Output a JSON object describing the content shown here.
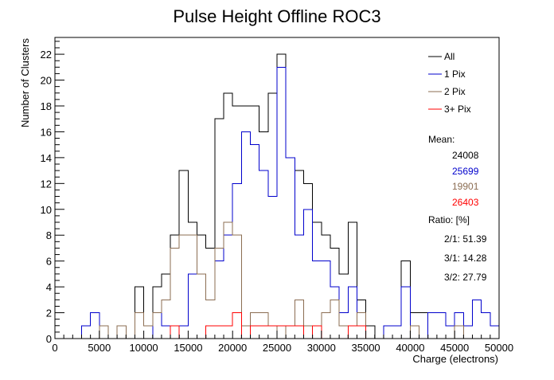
{
  "chart_data": {
    "type": "histogram",
    "title": "Pulse Height Offline ROC3",
    "xlabel": "Charge (electrons)",
    "ylabel": "Number of Clusters",
    "xlim": [
      0,
      50000
    ],
    "ylim": [
      0,
      23.3
    ],
    "bin_width": 1000,
    "x_ticks": [
      0,
      5000,
      10000,
      15000,
      20000,
      25000,
      30000,
      35000,
      40000,
      45000,
      50000
    ],
    "x_tick_labels": [
      "0",
      "5000",
      "10000",
      "15000",
      "20000",
      "25000",
      "30000",
      "35000",
      "40000",
      "45000",
      "50000"
    ],
    "y_ticks": [
      0,
      2,
      4,
      6,
      8,
      10,
      12,
      14,
      16,
      18,
      20,
      22
    ],
    "y_tick_labels": [
      "0",
      "2",
      "4",
      "6",
      "8",
      "10",
      "12",
      "14",
      "16",
      "18",
      "20",
      "22"
    ],
    "legend_position": "top-right",
    "series": [
      {
        "name": "All",
        "color": "#000000",
        "values": [
          0,
          0,
          0,
          1,
          2,
          1,
          0,
          1,
          0,
          4,
          1,
          4,
          5,
          8,
          13,
          9,
          8,
          7,
          17,
          19,
          18,
          18,
          18,
          16,
          19,
          22,
          14,
          13,
          12,
          9,
          8,
          7,
          5,
          9,
          3,
          1,
          0,
          1,
          1,
          6,
          2,
          2,
          2,
          2,
          1,
          2,
          1,
          3,
          2,
          1
        ]
      },
      {
        "name": "1 Pix",
        "color": "#0000cc",
        "values": [
          0,
          0,
          0,
          1,
          2,
          1,
          0,
          0,
          0,
          0,
          0,
          2,
          1,
          1,
          1,
          5,
          5,
          3,
          6,
          8,
          12,
          16,
          15,
          13,
          11,
          21,
          14,
          8,
          10,
          6,
          6,
          4,
          2,
          4,
          1,
          0,
          0,
          1,
          1,
          4,
          0,
          0,
          2,
          2,
          1,
          2,
          1,
          3,
          2,
          1
        ]
      },
      {
        "name": "2 Pix",
        "color": "#8b6d52",
        "values": [
          0,
          0,
          0,
          0,
          0,
          1,
          0,
          1,
          0,
          2,
          1,
          2,
          3,
          7,
          8,
          8,
          5,
          3,
          7,
          9,
          8,
          1,
          2,
          2,
          1,
          0,
          1,
          3,
          1,
          1,
          2,
          3,
          1,
          1,
          2,
          0,
          0,
          0,
          0,
          0,
          1,
          0,
          0,
          0,
          0,
          1,
          0,
          0,
          0,
          0
        ]
      },
      {
        "name": "3+ Pix",
        "color": "#ff0000",
        "values": [
          0,
          0,
          0,
          0,
          0,
          0,
          0,
          0,
          0,
          0,
          0,
          0,
          0,
          1,
          0,
          0,
          0,
          1,
          1,
          1,
          2,
          0,
          1,
          1,
          1,
          1,
          1,
          1,
          0,
          1,
          0,
          0,
          0,
          1,
          1,
          0,
          0,
          0,
          0,
          0,
          0,
          0,
          0,
          0,
          0,
          0,
          0,
          0,
          0,
          0
        ]
      }
    ]
  },
  "stats": {
    "mean_label": "Mean:",
    "means": [
      "24008",
      "25699",
      "19901",
      "26403"
    ],
    "ratio_label": "Ratio: [%]",
    "ratios": [
      "2/1: 51.39",
      "3/1: 14.28",
      "3/2: 27.79"
    ]
  },
  "colors": {
    "frame": "#000000",
    "background": "#ffffff"
  }
}
